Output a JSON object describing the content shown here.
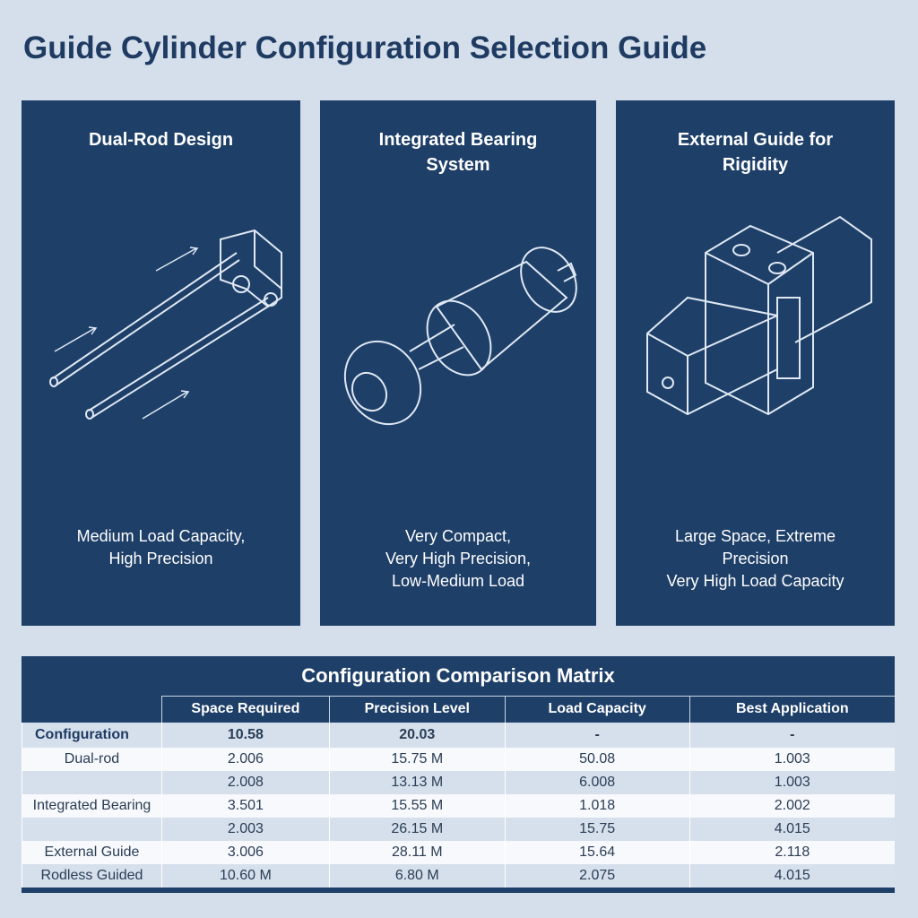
{
  "title": "Guide Cylinder Configuration Selection Guide",
  "panels": [
    {
      "title": "Dual-Rod Design",
      "desc": [
        "Medium Load Capacity,",
        "High Precision"
      ],
      "icon": "dual-rod-illustration"
    },
    {
      "title": "Integrated Bearing System",
      "desc": [
        "Very Compact,",
        "Very High Precision,",
        "Low-Medium Load"
      ],
      "icon": "integrated-bearing-illustration"
    },
    {
      "title": "External Guide for Rigidity",
      "desc": [
        "Large Space, Extreme",
        "Precision",
        "Very High Load Capacity"
      ],
      "icon": "external-guide-illustration"
    }
  ],
  "table": {
    "title": "Configuration Comparison Matrix",
    "headers": [
      "",
      "Space Required",
      "Precision Level",
      "Load Capacity",
      "Best Application"
    ],
    "rows": [
      [
        "Configuration",
        "10.58",
        "20.03",
        "-",
        "-"
      ],
      [
        "Dual-rod",
        "2.006",
        "15.75 M",
        "50.08",
        "1.003"
      ],
      [
        "",
        "2.008",
        "13.13 M",
        "6.008",
        "1.003"
      ],
      [
        "Integrated Bearing",
        "3.501",
        "15.55 M",
        "1.018",
        "2.002"
      ],
      [
        "",
        "2.003",
        "26.15 M",
        "15.75",
        "4.015"
      ],
      [
        "External Guide",
        "3.006",
        "28.11 M",
        "15.64",
        "2.118"
      ],
      [
        "Rodless Guided",
        "10.60 M",
        "6.80 M",
        "2.075",
        "4.015"
      ]
    ]
  },
  "colors": {
    "panel": "#1e3f68",
    "background": "#d4dfeb",
    "title": "#1f3b62"
  }
}
